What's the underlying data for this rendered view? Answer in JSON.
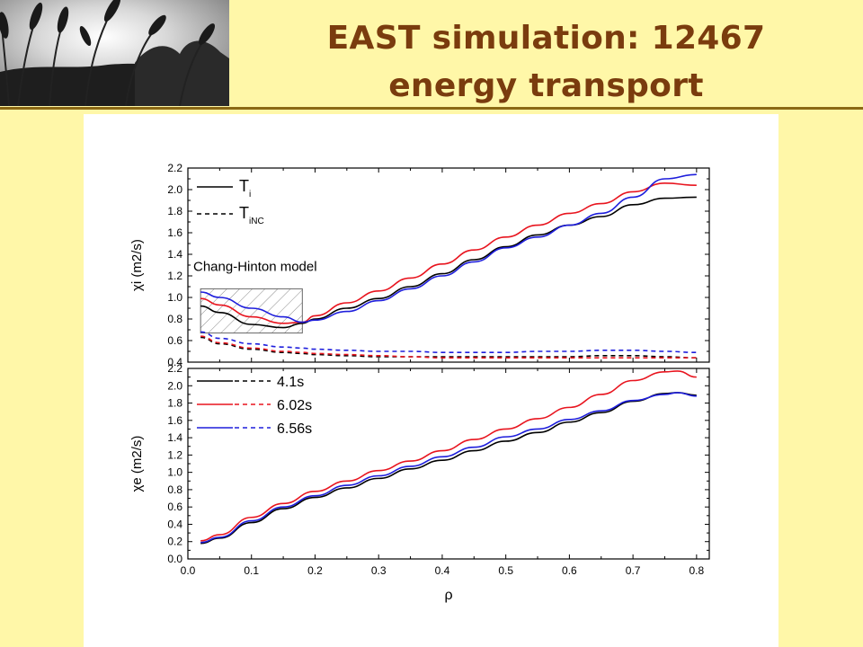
{
  "title": {
    "line1": "EAST simulation: 12467",
    "line2": "energy transport"
  },
  "colors": {
    "shot_4_1s": "#000000",
    "shot_6_02s": "#E8141E",
    "shot_6_56s": "#1E1EDC",
    "title": "#7A3C0E",
    "background": "#FFF7A8"
  },
  "chart_data": [
    {
      "type": "line",
      "panel": "top",
      "ylabel": "χi (m2/s)",
      "xlabel": "",
      "xlim": [
        0.0,
        0.82
      ],
      "ylim": [
        0.4,
        2.2
      ],
      "yticks": [
        "0.4",
        "0.6",
        "0.8",
        "1.0",
        "1.2",
        "1.4",
        "1.6",
        "1.8",
        "2.0",
        "2.2"
      ],
      "legend": {
        "position": "top-left",
        "entries": [
          {
            "label": "Ti",
            "main": "T",
            "sub": "i",
            "style": "solid"
          },
          {
            "label": "TiNC",
            "main": "T",
            "sub": "iNC",
            "style": "dashed"
          }
        ]
      },
      "annotation": {
        "text": "Chang-Hinton model",
        "region_x": [
          0.02,
          0.18
        ],
        "region_y": [
          0.67,
          1.08
        ]
      },
      "x": [
        0.02,
        0.05,
        0.1,
        0.15,
        0.18,
        0.2,
        0.25,
        0.3,
        0.35,
        0.4,
        0.45,
        0.5,
        0.55,
        0.6,
        0.65,
        0.7,
        0.75,
        0.8
      ],
      "series": [
        {
          "name": "4.1s",
          "style": "solid",
          "color": "#000000",
          "values": [
            0.92,
            0.86,
            0.75,
            0.72,
            0.76,
            0.8,
            0.9,
            0.99,
            1.1,
            1.22,
            1.35,
            1.47,
            1.58,
            1.67,
            1.75,
            1.86,
            1.92,
            1.93
          ]
        },
        {
          "name": "6.02s",
          "style": "solid",
          "color": "#E8141E",
          "values": [
            0.99,
            0.93,
            0.82,
            0.76,
            0.77,
            0.83,
            0.95,
            1.06,
            1.18,
            1.31,
            1.44,
            1.56,
            1.67,
            1.78,
            1.87,
            1.98,
            2.06,
            2.04
          ]
        },
        {
          "name": "6.56s",
          "style": "solid",
          "color": "#1E1EDC",
          "values": [
            1.05,
            1.0,
            0.9,
            0.82,
            0.77,
            0.79,
            0.87,
            0.97,
            1.08,
            1.2,
            1.33,
            1.46,
            1.56,
            1.67,
            1.78,
            1.93,
            2.1,
            2.14
          ]
        },
        {
          "name": "4.1s NC",
          "style": "dashed",
          "color": "#000000",
          "values": [
            0.63,
            0.57,
            0.52,
            0.49,
            0.48,
            0.47,
            0.46,
            0.45,
            0.45,
            0.45,
            0.45,
            0.45,
            0.45,
            0.45,
            0.46,
            0.46,
            0.45,
            0.44
          ]
        },
        {
          "name": "6.02s NC",
          "style": "dashed",
          "color": "#E8141E",
          "values": [
            0.64,
            0.58,
            0.53,
            0.5,
            0.49,
            0.48,
            0.47,
            0.46,
            0.45,
            0.44,
            0.44,
            0.44,
            0.44,
            0.44,
            0.44,
            0.44,
            0.44,
            0.44
          ]
        },
        {
          "name": "6.56s NC",
          "style": "dashed",
          "color": "#1E1EDC",
          "values": [
            0.68,
            0.62,
            0.57,
            0.54,
            0.53,
            0.52,
            0.51,
            0.5,
            0.5,
            0.49,
            0.49,
            0.49,
            0.5,
            0.5,
            0.51,
            0.51,
            0.5,
            0.49
          ]
        }
      ]
    },
    {
      "type": "line",
      "panel": "bottom",
      "ylabel": "χe (m2/s)",
      "xlabel": "ρ",
      "xlim": [
        0.0,
        0.82
      ],
      "ylim": [
        0.0,
        2.2
      ],
      "xticks": [
        "0.0",
        "0.1",
        "0.2",
        "0.3",
        "0.4",
        "0.5",
        "0.6",
        "0.7",
        "0.8"
      ],
      "yticks": [
        "0.0",
        "0.2",
        "0.4",
        "0.6",
        "0.8",
        "1.0",
        "1.2",
        "1.4",
        "1.6",
        "1.8",
        "2.0",
        "2.2"
      ],
      "legend": {
        "position": "top-left",
        "entries": [
          {
            "label": "4.1s",
            "color": "#000000"
          },
          {
            "label": "6.02s",
            "color": "#E8141E"
          },
          {
            "label": "6.56s",
            "color": "#1E1EDC"
          }
        ]
      },
      "x": [
        0.02,
        0.05,
        0.1,
        0.15,
        0.2,
        0.25,
        0.3,
        0.35,
        0.4,
        0.45,
        0.5,
        0.55,
        0.6,
        0.65,
        0.7,
        0.75,
        0.77,
        0.8
      ],
      "series": [
        {
          "name": "4.1s",
          "color": "#000000",
          "values": [
            0.18,
            0.24,
            0.42,
            0.58,
            0.71,
            0.82,
            0.93,
            1.04,
            1.14,
            1.25,
            1.36,
            1.46,
            1.58,
            1.69,
            1.82,
            1.91,
            1.92,
            1.89
          ]
        },
        {
          "name": "6.02s",
          "color": "#E8141E",
          "values": [
            0.21,
            0.28,
            0.48,
            0.64,
            0.78,
            0.9,
            1.02,
            1.13,
            1.25,
            1.38,
            1.5,
            1.62,
            1.75,
            1.9,
            2.06,
            2.16,
            2.17,
            2.1
          ]
        },
        {
          "name": "6.56s",
          "color": "#1E1EDC",
          "values": [
            0.19,
            0.25,
            0.44,
            0.6,
            0.73,
            0.85,
            0.96,
            1.07,
            1.18,
            1.29,
            1.41,
            1.5,
            1.61,
            1.71,
            1.83,
            1.9,
            1.92,
            1.88
          ]
        }
      ]
    }
  ]
}
